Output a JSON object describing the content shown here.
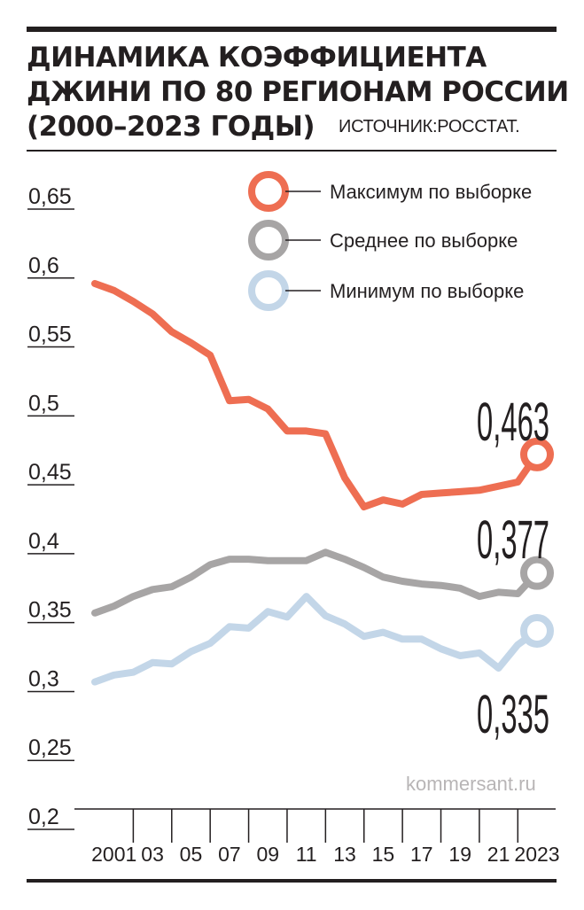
{
  "header": {
    "title_lines": [
      "Динамика коэффициента",
      "Джини по 80 регионам России",
      "(2000–2023 годы)"
    ],
    "source": "ИСТОЧНИК:РОССТАТ."
  },
  "watermark": "kommersant.ru",
  "colors": {
    "max": "#ee6e52",
    "avg": "#a7a5a5",
    "min": "#c3d6e8",
    "text": "#231f20"
  },
  "chart_data": {
    "type": "line",
    "title": "Динамика коэффициента Джини по 80 регионам России (2000–2023 годы)",
    "xlabel": "",
    "ylabel": "",
    "x": [
      2000,
      2001,
      2002,
      2003,
      2004,
      2005,
      2006,
      2007,
      2008,
      2009,
      2010,
      2011,
      2012,
      2013,
      2014,
      2015,
      2016,
      2017,
      2018,
      2019,
      2020,
      2021,
      2022,
      2023
    ],
    "x_tick_values": [
      2001,
      2003,
      2005,
      2007,
      2009,
      2011,
      2013,
      2015,
      2017,
      2019,
      2021,
      2023
    ],
    "x_tick_labels": [
      "2001",
      "03",
      "05",
      "07",
      "09",
      "11",
      "13",
      "15",
      "17",
      "19",
      "21",
      "2023"
    ],
    "y_ticks": [
      0.2,
      0.25,
      0.3,
      0.35,
      0.4,
      0.45,
      0.5,
      0.55,
      0.6,
      0.65
    ],
    "y_tick_labels": [
      "0,2",
      "0,25",
      "0,3",
      "0,35",
      "0,4",
      "0,45",
      "0,5",
      "0,55",
      "0,6",
      "0,65"
    ],
    "ylim": [
      0.2,
      0.65
    ],
    "grid": false,
    "legend_position": "top-right",
    "series": [
      {
        "key": "max",
        "name": "Максимум по выборке",
        "values": [
          0.587,
          0.582,
          0.574,
          0.565,
          0.552,
          0.544,
          0.535,
          0.502,
          0.503,
          0.496,
          0.48,
          0.48,
          0.478,
          0.446,
          0.425,
          0.43,
          0.427,
          0.434,
          0.435,
          0.436,
          0.437,
          0.44,
          0.443,
          0.463
        ],
        "end_label": "0,463"
      },
      {
        "key": "avg",
        "name": "Среднее по выборке",
        "values": [
          0.348,
          0.353,
          0.36,
          0.365,
          0.367,
          0.374,
          0.383,
          0.387,
          0.387,
          0.386,
          0.386,
          0.386,
          0.392,
          0.387,
          0.381,
          0.374,
          0.371,
          0.369,
          0.368,
          0.366,
          0.36,
          0.363,
          0.362,
          0.377
        ],
        "end_label": "0,377"
      },
      {
        "key": "min",
        "name": "Минимум по выборке",
        "values": [
          0.298,
          0.303,
          0.305,
          0.312,
          0.311,
          0.32,
          0.326,
          0.338,
          0.337,
          0.349,
          0.345,
          0.36,
          0.346,
          0.34,
          0.331,
          0.334,
          0.329,
          0.329,
          0.322,
          0.317,
          0.319,
          0.308,
          0.325,
          0.335
        ],
        "end_label": "0,335"
      }
    ]
  }
}
